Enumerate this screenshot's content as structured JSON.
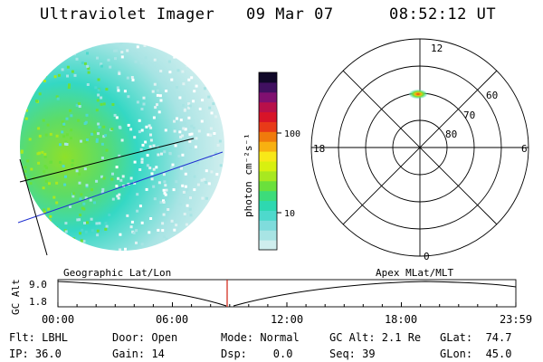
{
  "header": {
    "title": "Ultraviolet Imager",
    "date": "09 Mar 07",
    "time": "08:52:12 UT"
  },
  "colorbar": {
    "unit_label": "photon cm⁻²s⁻¹",
    "ticks": [
      "100",
      "10"
    ],
    "colors": [
      "#cfeeee",
      "#a8e4e4",
      "#7fdcdc",
      "#4ed9cc",
      "#2ed8b0",
      "#3cdc7a",
      "#6ae03c",
      "#a8e820",
      "#d8f010",
      "#f8e818",
      "#f8b010",
      "#f07a0c",
      "#e83a18",
      "#d81428",
      "#b8104a",
      "#801070",
      "#401060",
      "#100828"
    ]
  },
  "polar": {
    "mlt_labels": [
      "12",
      "18",
      "6",
      "0"
    ],
    "lat_labels": [
      "60",
      "70",
      "80"
    ]
  },
  "timeline": {
    "left_label": "Geographic Lat/Lon",
    "right_label": "Apex MLat/MLT",
    "axis_title": "GC Alt",
    "y_ticks": [
      "9.0",
      "1.8"
    ],
    "x_ticks": [
      "00:00",
      "06:00",
      "12:00",
      "18:00",
      "23:59"
    ],
    "current_time_fraction": 0.3695
  },
  "info": {
    "filter": "Flt: LBHL",
    "ip": "IP: 36.0",
    "door": "Door: Open",
    "gain": "Gain: 14",
    "mode": "Mode: Normal",
    "dsp": "Dsp:    0.0",
    "gc_alt": "GC Alt: 2.1 Re",
    "seq": "Seq: 39",
    "glat": "GLat:  74.7",
    "glon": "GLon:  45.0"
  }
}
